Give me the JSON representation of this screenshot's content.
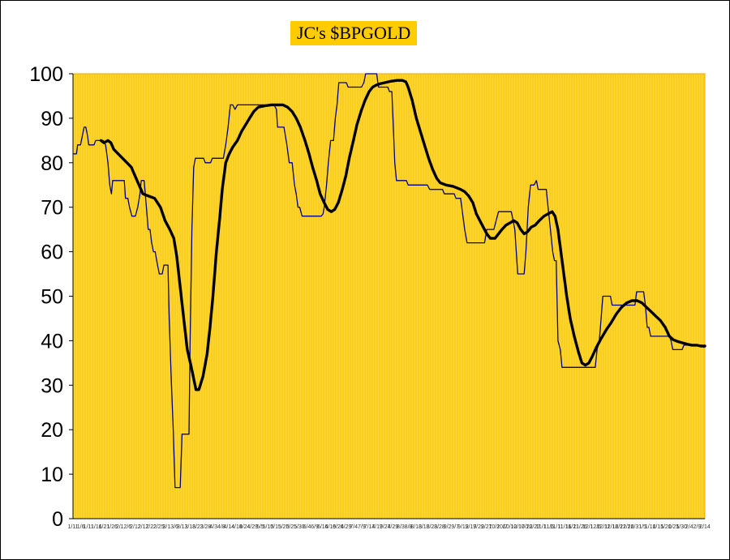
{
  "chart_data": {
    "type": "line",
    "title": "JC's $BPGOLD",
    "xlabel": "",
    "ylabel": "",
    "ylim": [
      0,
      100
    ],
    "yticks": [
      0,
      10,
      20,
      30,
      40,
      50,
      60,
      70,
      80,
      90,
      100
    ],
    "grid": "vertical",
    "colors": {
      "background": "#ffd633",
      "grid": "#f2c300",
      "plot_border": "#e6a800",
      "title_bg": "#ffcc00",
      "series_daily": "#000080",
      "series_smooth": "#000000"
    },
    "xtick_labels": [
      "1/11",
      "1/6",
      "1/11",
      "1/16",
      "1/21",
      "1/26",
      "2/1",
      "2/6",
      "2/12",
      "2/17",
      "2/22",
      "2/25",
      "3/1",
      "3/6",
      "3/13",
      "3/18",
      "3/23",
      "3/28",
      "4/3",
      "4/8",
      "4/14",
      "4/19",
      "4/24",
      "4/29",
      "5/5",
      "5/10",
      "5/15",
      "5/20",
      "5/25",
      "5/30",
      "6/4",
      "6/9",
      "6/14",
      "6/19",
      "6/24",
      "6/29",
      "7/4",
      "7/9",
      "7/14",
      "7/19",
      "7/24",
      "7/29",
      "8/3",
      "8/8",
      "8/13",
      "8/18",
      "8/23",
      "8/28",
      "9/2",
      "9/7",
      "9/12",
      "9/17",
      "9/22",
      "9/27",
      "10/2",
      "10/7",
      "10/12",
      "10/17",
      "10/22",
      "10/27",
      "11/1",
      "11/6",
      "11/11",
      "11/16",
      "11/21",
      "11/26",
      "12/1",
      "12/6",
      "12/11",
      "12/16",
      "12/21",
      "12/26",
      "12/31",
      "1/5",
      "1/10",
      "1/15",
      "1/20",
      "1/25",
      "1/30",
      "2/4",
      "2/9",
      "2/14"
    ],
    "series": [
      {
        "values": [
          [
            0,
            82
          ],
          [
            0.6,
            82
          ],
          [
            0.8,
            84
          ],
          [
            1.3,
            84
          ],
          [
            1.6,
            86
          ],
          [
            1.9,
            88
          ],
          [
            2.2,
            88
          ],
          [
            2.5,
            86
          ],
          [
            2.7,
            84
          ],
          [
            3.6,
            84
          ],
          [
            3.9,
            85
          ],
          [
            5.2,
            85
          ],
          [
            5.6,
            84
          ],
          [
            6.0,
            80
          ],
          [
            6.3,
            75
          ],
          [
            6.6,
            73
          ],
          [
            6.8,
            76
          ],
          [
            8.8,
            76
          ],
          [
            9.0,
            72
          ],
          [
            9.4,
            72
          ],
          [
            9.7,
            70
          ],
          [
            10.1,
            68
          ],
          [
            10.7,
            68
          ],
          [
            11.1,
            70
          ],
          [
            11.5,
            73
          ],
          [
            11.7,
            76
          ],
          [
            12.2,
            76
          ],
          [
            12.6,
            70
          ],
          [
            12.9,
            65
          ],
          [
            13.2,
            65
          ],
          [
            13.5,
            62
          ],
          [
            13.8,
            60
          ],
          [
            14.1,
            60
          ],
          [
            14.5,
            57
          ],
          [
            14.8,
            55
          ],
          [
            15.3,
            55
          ],
          [
            15.6,
            57
          ],
          [
            16.3,
            57
          ],
          [
            16.5,
            45
          ],
          [
            16.9,
            30
          ],
          [
            17.2,
            20
          ],
          [
            17.5,
            7
          ],
          [
            18.4,
            7
          ],
          [
            18.7,
            19
          ],
          [
            19.9,
            19
          ],
          [
            20.1,
            40
          ],
          [
            20.4,
            65
          ],
          [
            20.7,
            79
          ],
          [
            21.0,
            81
          ],
          [
            22.4,
            81
          ],
          [
            22.7,
            80
          ],
          [
            23.6,
            80
          ],
          [
            23.9,
            81
          ],
          [
            25.8,
            81
          ],
          [
            26.2,
            84
          ],
          [
            26.6,
            88
          ],
          [
            27.0,
            93
          ],
          [
            27.4,
            93
          ],
          [
            27.8,
            92
          ],
          [
            28.2,
            93
          ],
          [
            34.5,
            93
          ],
          [
            34.9,
            92
          ],
          [
            35.1,
            88
          ],
          [
            36.2,
            88
          ],
          [
            36.7,
            84
          ],
          [
            37.1,
            80
          ],
          [
            37.6,
            80
          ],
          [
            38.0,
            75
          ],
          [
            38.3,
            73
          ],
          [
            38.6,
            70
          ],
          [
            38.9,
            70
          ],
          [
            39.3,
            68
          ],
          [
            42.6,
            68
          ],
          [
            42.9,
            68.5
          ],
          [
            43.1,
            70
          ],
          [
            43.5,
            75
          ],
          [
            43.8,
            80
          ],
          [
            44.2,
            85
          ],
          [
            44.7,
            85
          ],
          [
            45.0,
            90
          ],
          [
            45.3,
            93
          ],
          [
            45.6,
            98
          ],
          [
            46.9,
            98
          ],
          [
            47.2,
            97
          ],
          [
            49.5,
            97
          ],
          [
            49.9,
            98
          ],
          [
            50.2,
            100
          ],
          [
            52.1,
            100
          ],
          [
            52.4,
            97
          ],
          [
            54.0,
            97
          ],
          [
            54.3,
            96
          ],
          [
            54.7,
            96
          ],
          [
            54.9,
            90
          ],
          [
            55.2,
            80
          ],
          [
            55.5,
            76
          ],
          [
            57.2,
            76
          ],
          [
            57.5,
            75
          ],
          [
            60.8,
            75
          ],
          [
            61.2,
            74
          ],
          [
            63.4,
            74
          ],
          [
            63.7,
            73
          ],
          [
            65.4,
            73
          ],
          [
            65.7,
            72
          ],
          [
            66.5,
            72
          ],
          [
            66.7,
            70
          ],
          [
            67.2,
            65
          ],
          [
            67.6,
            62
          ],
          [
            70.6,
            62
          ],
          [
            71.0,
            65
          ],
          [
            72.2,
            65
          ],
          [
            72.6,
            67
          ],
          [
            73.0,
            69
          ],
          [
            75.2,
            69
          ],
          [
            75.5,
            67
          ],
          [
            75.8,
            65
          ],
          [
            76.3,
            55
          ],
          [
            77.4,
            55
          ],
          [
            77.7,
            60
          ],
          [
            78.1,
            70
          ],
          [
            78.5,
            75
          ],
          [
            79.1,
            75
          ],
          [
            79.5,
            76
          ],
          [
            79.8,
            74
          ],
          [
            81.2,
            74
          ],
          [
            81.5,
            70
          ],
          [
            81.9,
            65
          ],
          [
            82.3,
            60
          ],
          [
            82.6,
            58
          ],
          [
            82.9,
            58
          ],
          [
            83.2,
            40
          ],
          [
            83.6,
            38
          ],
          [
            83.9,
            34
          ],
          [
            89.6,
            34
          ],
          [
            89.9,
            38
          ],
          [
            90.3,
            40
          ],
          [
            90.6,
            45
          ],
          [
            90.9,
            50
          ],
          [
            92.2,
            50
          ],
          [
            92.5,
            48
          ],
          [
            96.4,
            48
          ],
          [
            96.7,
            51
          ],
          [
            97.9,
            51
          ],
          [
            98.2,
            48
          ],
          [
            98.5,
            43
          ],
          [
            98.8,
            43
          ],
          [
            99.1,
            41
          ],
          [
            102.3,
            41
          ],
          [
            102.6,
            40
          ],
          [
            102.9,
            38
          ],
          [
            104.5,
            38
          ],
          [
            104.8,
            39
          ],
          [
            107.9,
            39
          ],
          [
            108.2,
            38.5
          ],
          [
            108.4,
            39
          ]
        ]
      },
      {
        "values": [
          [
            4.8,
            85
          ],
          [
            5.3,
            84.5
          ],
          [
            6.0,
            85
          ],
          [
            6.5,
            84.5
          ],
          [
            7.0,
            83
          ],
          [
            8.5,
            81
          ],
          [
            10.0,
            79
          ],
          [
            11.0,
            76
          ],
          [
            12.0,
            73
          ],
          [
            13.0,
            72.5
          ],
          [
            14.0,
            72
          ],
          [
            15.0,
            70
          ],
          [
            15.8,
            67
          ],
          [
            16.6,
            65
          ],
          [
            17.3,
            63
          ],
          [
            17.8,
            59
          ],
          [
            18.4,
            52
          ],
          [
            19.0,
            45
          ],
          [
            19.6,
            38
          ],
          [
            20.3,
            34
          ],
          [
            21.1,
            29
          ],
          [
            21.6,
            29
          ],
          [
            22.3,
            32
          ],
          [
            23.0,
            37
          ],
          [
            23.5,
            43
          ],
          [
            24.0,
            50
          ],
          [
            24.6,
            60
          ],
          [
            25.2,
            68
          ],
          [
            25.6,
            74
          ],
          [
            26.2,
            80
          ],
          [
            26.8,
            82
          ],
          [
            27.4,
            83.5
          ],
          [
            28.2,
            85
          ],
          [
            28.9,
            87
          ],
          [
            29.6,
            88.5
          ],
          [
            30.3,
            90
          ],
          [
            31.0,
            91.5
          ],
          [
            31.8,
            92.5
          ],
          [
            33.0,
            92.8
          ],
          [
            34.0,
            93
          ],
          [
            35.0,
            93
          ],
          [
            36.0,
            93
          ],
          [
            36.8,
            92.5
          ],
          [
            37.6,
            91.5
          ],
          [
            38.3,
            90
          ],
          [
            39.0,
            88
          ],
          [
            39.8,
            85
          ],
          [
            40.5,
            82
          ],
          [
            41.1,
            79
          ],
          [
            41.8,
            76
          ],
          [
            42.4,
            73
          ],
          [
            43.1,
            71
          ],
          [
            43.7,
            69.5
          ],
          [
            44.3,
            69
          ],
          [
            44.9,
            69.5
          ],
          [
            45.5,
            71
          ],
          [
            46.2,
            74
          ],
          [
            46.8,
            77
          ],
          [
            47.4,
            81
          ],
          [
            48.1,
            85
          ],
          [
            48.7,
            88.5
          ],
          [
            49.4,
            91.5
          ],
          [
            50.1,
            94
          ],
          [
            50.8,
            96
          ],
          [
            51.4,
            97
          ],
          [
            52.1,
            97.5
          ],
          [
            52.8,
            97.8
          ],
          [
            53.5,
            98
          ],
          [
            54.5,
            98.3
          ],
          [
            55.6,
            98.5
          ],
          [
            56.5,
            98.5
          ],
          [
            57.1,
            98.2
          ],
          [
            57.5,
            97
          ],
          [
            58.2,
            94
          ],
          [
            58.9,
            90
          ],
          [
            59.6,
            87
          ],
          [
            60.3,
            84
          ],
          [
            61.0,
            81
          ],
          [
            61.7,
            78.5
          ],
          [
            62.4,
            76.5
          ],
          [
            63.0,
            75.5
          ],
          [
            64.0,
            75
          ],
          [
            65.2,
            74.7
          ],
          [
            66.5,
            74
          ],
          [
            67.2,
            73.5
          ],
          [
            67.9,
            72.5
          ],
          [
            68.6,
            71
          ],
          [
            69.2,
            68.5
          ],
          [
            69.8,
            67
          ],
          [
            70.4,
            65.5
          ],
          [
            71.0,
            64
          ],
          [
            71.6,
            63
          ],
          [
            72.4,
            63
          ],
          [
            73.0,
            64
          ],
          [
            73.6,
            65
          ],
          [
            74.3,
            66
          ],
          [
            75.0,
            66.5
          ],
          [
            75.6,
            67
          ],
          [
            76.2,
            66.5
          ],
          [
            76.8,
            65
          ],
          [
            77.4,
            64
          ],
          [
            78.0,
            64.5
          ],
          [
            78.6,
            65.5
          ],
          [
            79.3,
            66
          ],
          [
            80.0,
            67
          ],
          [
            80.8,
            68
          ],
          [
            81.5,
            68.5
          ],
          [
            82.2,
            69
          ],
          [
            82.7,
            68
          ],
          [
            83.2,
            65
          ],
          [
            83.7,
            60
          ],
          [
            84.2,
            55
          ],
          [
            84.7,
            50
          ],
          [
            85.3,
            45
          ],
          [
            86.0,
            41
          ],
          [
            86.7,
            37.5
          ],
          [
            87.3,
            35
          ],
          [
            87.9,
            34.5
          ],
          [
            88.5,
            35
          ],
          [
            89.1,
            36.5
          ],
          [
            89.8,
            38.5
          ],
          [
            90.6,
            40.5
          ],
          [
            91.5,
            42.5
          ],
          [
            92.3,
            44
          ],
          [
            93.2,
            46
          ],
          [
            94.1,
            47.5
          ],
          [
            95.0,
            48.5
          ],
          [
            95.9,
            49
          ],
          [
            96.8,
            49
          ],
          [
            97.6,
            48.5
          ],
          [
            98.4,
            47.5
          ],
          [
            99.2,
            46.5
          ],
          [
            100.0,
            45.5
          ],
          [
            100.8,
            44.5
          ],
          [
            101.6,
            43
          ],
          [
            102.3,
            41
          ],
          [
            103.0,
            40.2
          ],
          [
            103.8,
            39.8
          ],
          [
            104.6,
            39.5
          ],
          [
            105.4,
            39.2
          ],
          [
            106.2,
            39
          ],
          [
            107.0,
            39
          ],
          [
            107.7,
            38.8
          ],
          [
            108.4,
            38.8
          ]
        ]
      }
    ]
  }
}
